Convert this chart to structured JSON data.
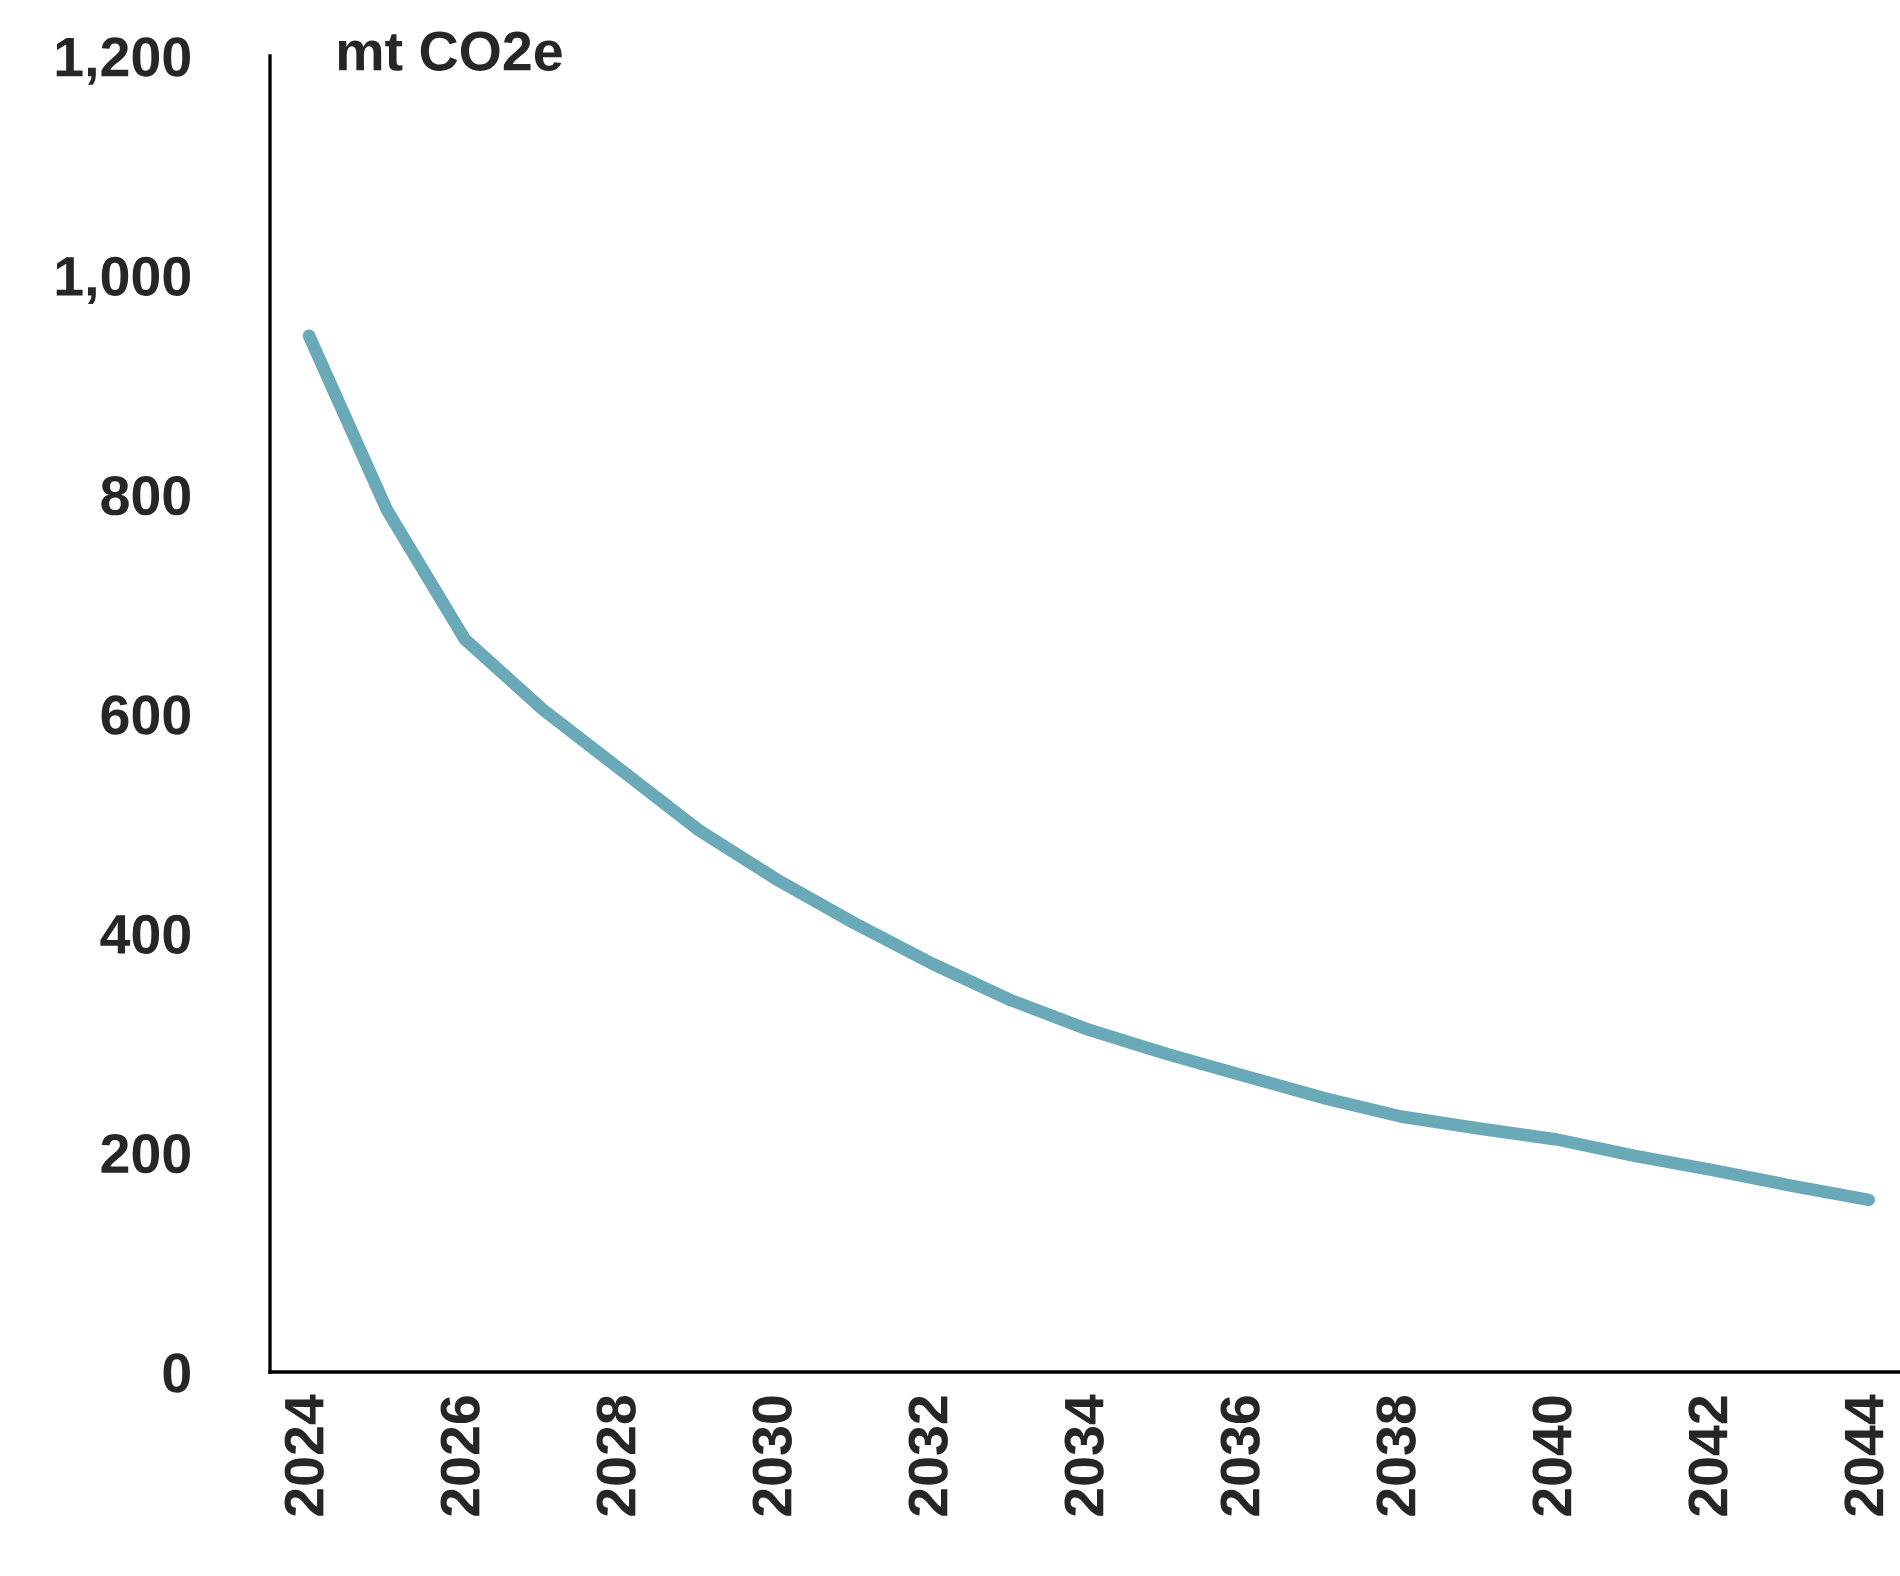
{
  "chart_data": {
    "type": "line",
    "ylabel": "mt CO2e",
    "x": [
      2024,
      2025,
      2026,
      2027,
      2028,
      2029,
      2030,
      2031,
      2032,
      2033,
      2034,
      2035,
      2036,
      2037,
      2038,
      2039,
      2040,
      2041,
      2042,
      2043,
      2044
    ],
    "series": [
      {
        "color": "#6aa9b8",
        "values": [
          945,
          786,
          668,
          604,
          549,
          494,
          449,
          409,
          372,
          339,
          312,
          290,
          270,
          250,
          233,
          222,
          212,
          197,
          184,
          170,
          157
        ]
      }
    ],
    "xlim": [
      2023.5,
      2044.4
    ],
    "xticks": [
      2024,
      2026,
      2028,
      2030,
      2032,
      2034,
      2036,
      2038,
      2040,
      2042,
      2044
    ],
    "ylim": [
      0,
      1200
    ],
    "yticks": [
      {
        "value": 0,
        "label": "0"
      },
      {
        "value": 200,
        "label": "200"
      },
      {
        "value": 400,
        "label": "400"
      },
      {
        "value": 600,
        "label": "600"
      },
      {
        "value": 800,
        "label": "800"
      },
      {
        "value": 1000,
        "label": "1,000"
      },
      {
        "value": 1200,
        "label": "1,200"
      }
    ],
    "grid": false,
    "legend": false,
    "marker": "none",
    "line_style": "solid"
  }
}
